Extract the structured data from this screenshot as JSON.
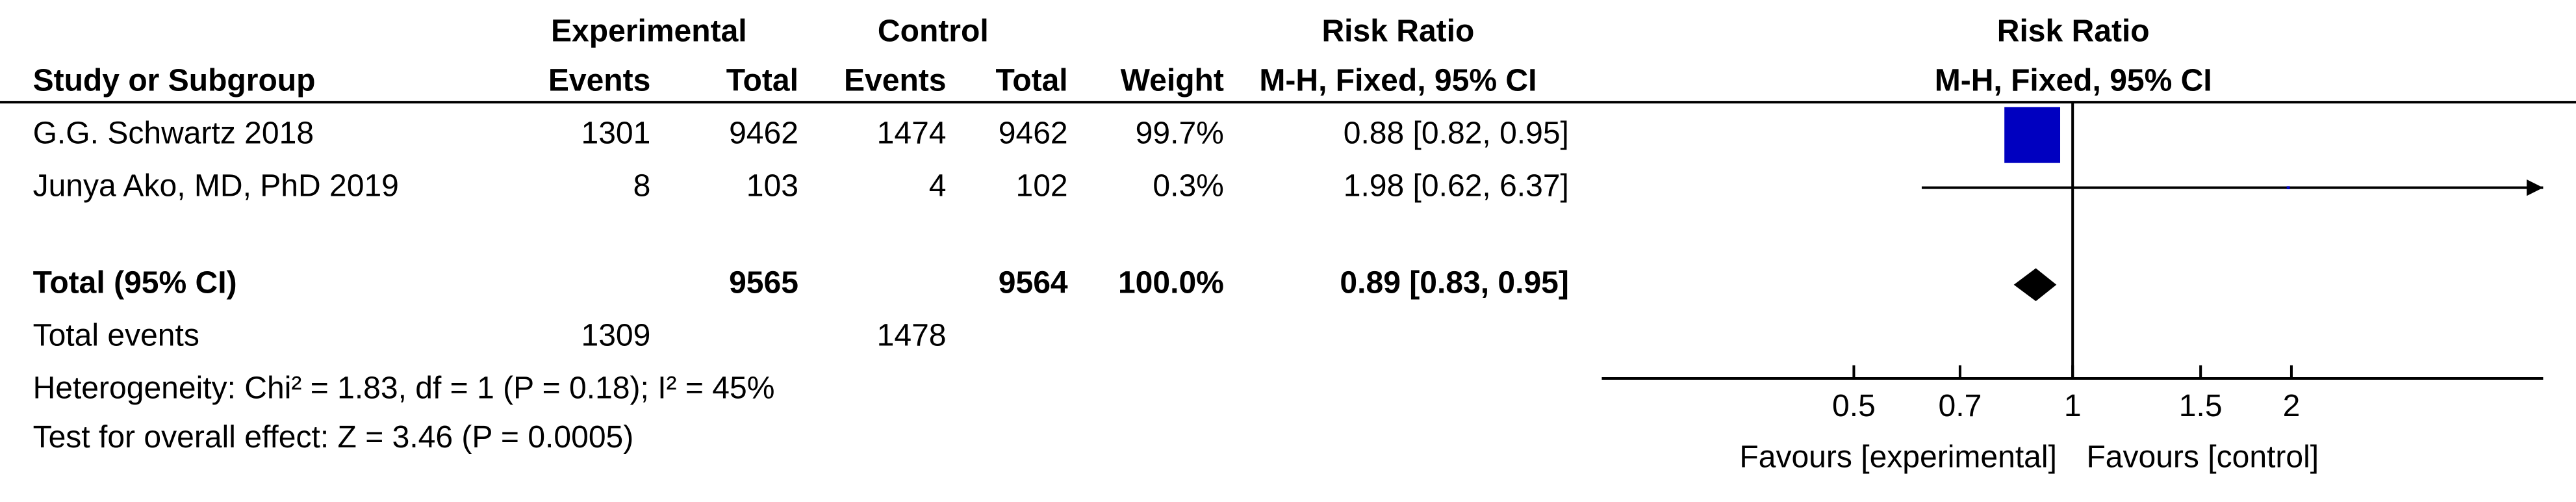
{
  "chart_data": {
    "type": "forest",
    "headers": {
      "experimental": "Experimental",
      "control": "Control",
      "study": "Study or Subgroup",
      "events_e": "Events",
      "total_e": "Total",
      "events_c": "Events",
      "total_c": "Total",
      "weight": "Weight",
      "rr": "Risk Ratio",
      "rr_method": "M-H, Fixed, 95% CI"
    },
    "plot_title": "Risk Ratio",
    "plot_subtitle": "M-H, Fixed, 95% CI",
    "studies": [
      {
        "name": "G.G. Schwartz 2018",
        "events_e": 1301,
        "total_e": 9462,
        "events_c": 1474,
        "total_c": 9462,
        "weight": 99.7,
        "weight_label": "99.7%",
        "rr": 0.88,
        "lower": 0.82,
        "upper": 0.95,
        "ci_label": "0.88 [0.82, 0.95]"
      },
      {
        "name": "Junya Ako, MD, PhD 2019",
        "events_e": 8,
        "total_e": 103,
        "events_c": 4,
        "total_c": 102,
        "weight": 0.3,
        "weight_label": "0.3%",
        "rr": 1.98,
        "lower": 0.62,
        "upper": 6.37,
        "ci_label": "1.98 [0.62, 6.37]"
      }
    ],
    "total": {
      "name": "Total (95% CI)",
      "total_e": 9565,
      "total_c": 9564,
      "weight_label": "100.0%",
      "rr": 0.89,
      "lower": 0.83,
      "upper": 0.95,
      "ci_label": "0.89 [0.83, 0.95]"
    },
    "total_events": {
      "name": "Total events",
      "events_e": 1309,
      "events_c": 1478
    },
    "heterogeneity": "Heterogeneity: Chi² = 1.83, df = 1 (P = 0.18); I² = 45%",
    "overall_effect": "Test for overall effect: Z = 3.46 (P = 0.0005)",
    "log_scale": true,
    "xlim": [
      0.225,
      4.44
    ],
    "xticks": [
      0.5,
      0.7,
      1,
      1.5,
      2
    ],
    "reference_line": 1,
    "favours_left": "Favours [experimental]",
    "favours_right": "Favours [control]",
    "box_color": "#0000c0"
  }
}
